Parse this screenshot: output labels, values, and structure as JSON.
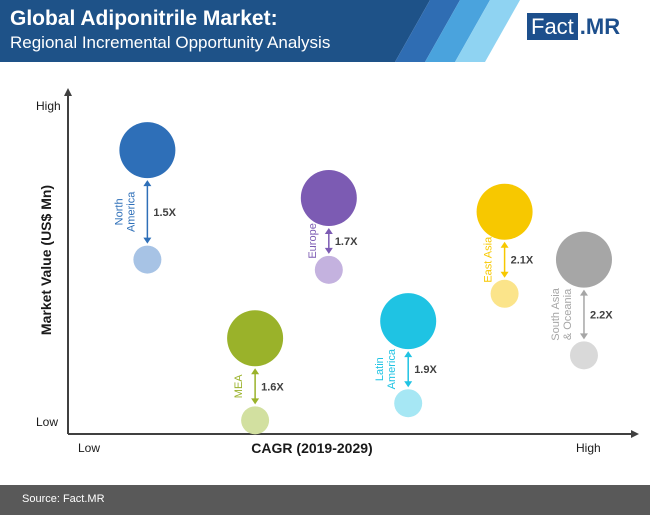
{
  "header": {
    "title": "Global Adiponitrile Market:",
    "subtitle": "Regional Incremental Opportunity Analysis",
    "logo_a": "Fact",
    "logo_b": ".MR"
  },
  "footer": {
    "source": "Source: Fact.MR"
  },
  "colors": {
    "header_bg": "#1e5288",
    "accent_light": "#8fd3f2",
    "axis": "#404040",
    "label": "#1a1a1a"
  },
  "chart_data": {
    "type": "bubble",
    "xlabel": "CAGR (2019-2029)",
    "ylabel": "Market Value (US$ Mn)",
    "x_tick_labels": [
      "Low",
      "High"
    ],
    "y_tick_labels": [
      "Low",
      "High"
    ],
    "xlim": [
      0,
      1
    ],
    "ylim": [
      0,
      1
    ],
    "grid": false,
    "legend": "none",
    "series": [
      {
        "name": "North America",
        "label_lines": [
          "North",
          "America"
        ],
        "multiplier": "1.5X",
        "color": "#2e6fb8",
        "light": "#a7c3e5",
        "x": 0.14,
        "y_current": 0.51,
        "y_future": 0.83
      },
      {
        "name": "MEA",
        "label_lines": [
          "MEA"
        ],
        "multiplier": "1.6X",
        "color": "#9ab22a",
        "light": "#d2e0a0",
        "x": 0.33,
        "y_current": 0.04,
        "y_future": 0.28
      },
      {
        "name": "Europe",
        "label_lines": [
          "Europe"
        ],
        "multiplier": "1.7X",
        "color": "#7c5bb3",
        "light": "#c4b2df",
        "x": 0.46,
        "y_current": 0.48,
        "y_future": 0.69
      },
      {
        "name": "Latin America",
        "label_lines": [
          "Latin",
          "America"
        ],
        "multiplier": "1.9X",
        "color": "#1fc3e3",
        "light": "#a6e7f4",
        "x": 0.6,
        "y_current": 0.09,
        "y_future": 0.33
      },
      {
        "name": "East Asia",
        "label_lines": [
          "East Asia"
        ],
        "multiplier": "2.1X",
        "color": "#f7c800",
        "light": "#fbe48a",
        "x": 0.77,
        "y_current": 0.41,
        "y_future": 0.65
      },
      {
        "name": "South Asia & Oceania",
        "label_lines": [
          "South Asia",
          "& Oceania"
        ],
        "multiplier": "2.2X",
        "color": "#a6a6a6",
        "light": "#d9d9d9",
        "x": 0.91,
        "y_current": 0.23,
        "y_future": 0.51
      }
    ]
  }
}
